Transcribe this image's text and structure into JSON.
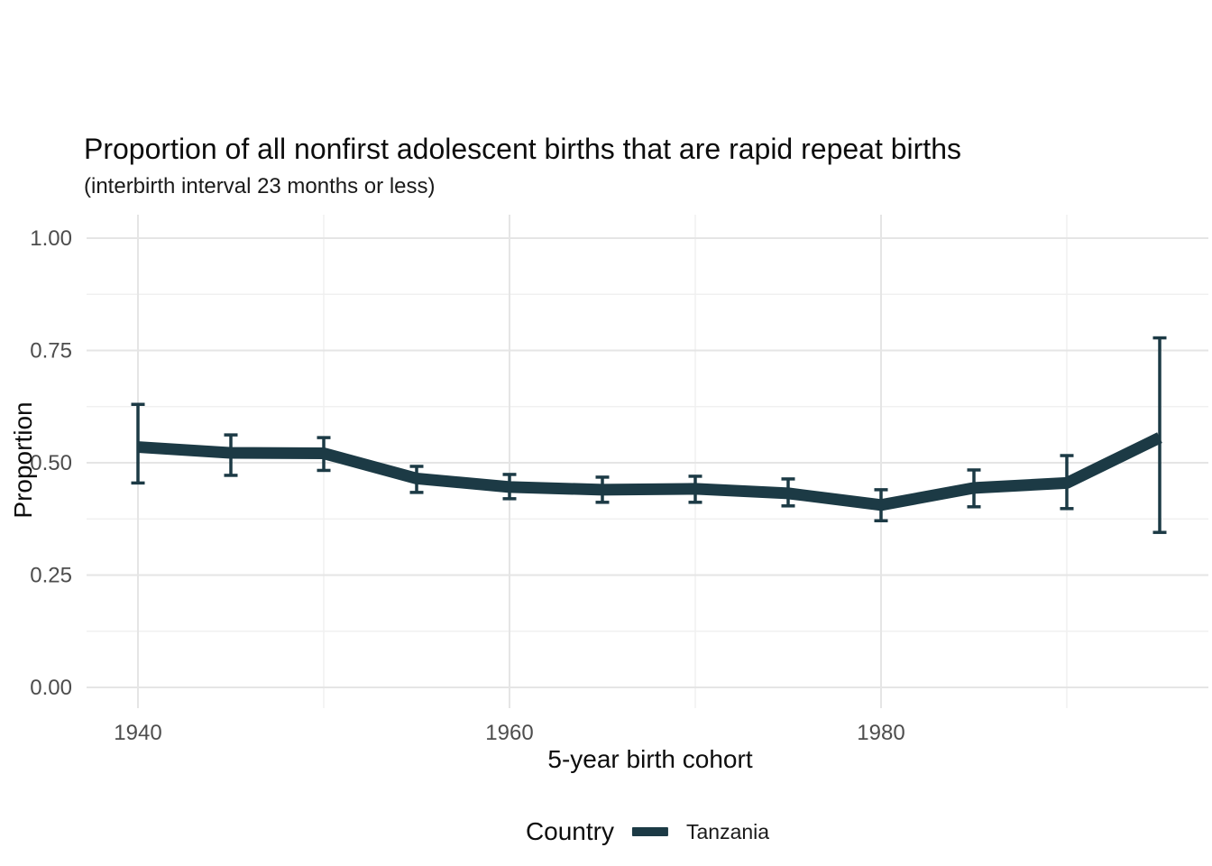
{
  "figure": {
    "title": "Proportion of all nonfirst adolescent births that are rapid repeat births",
    "subtitle": "(interbirth interval 23 months or less)"
  },
  "colors": {
    "series": "#1c3a45",
    "grid_major": "#e5e5e5",
    "grid_minor": "#f0f0f0",
    "tick_label": "#4d4d4d",
    "text": "#0d0d0d",
    "background": "#ffffff"
  },
  "chart_data": {
    "type": "line",
    "title": "Proportion of all nonfirst adolescent births that are rapid repeat births",
    "subtitle": "(interbirth interval 23 months or less)",
    "xlabel": "5-year birth cohort",
    "ylabel": "Proportion",
    "grid": "on",
    "x": [
      1940,
      1945,
      1950,
      1955,
      1960,
      1965,
      1970,
      1975,
      1980,
      1985,
      1990,
      1995
    ],
    "series": [
      {
        "name": "Tanzania",
        "color": "#1c3a45",
        "values": [
          0.535,
          0.522,
          0.521,
          0.465,
          0.446,
          0.44,
          0.442,
          0.432,
          0.406,
          0.444,
          0.455,
          0.556
        ],
        "ci_lower": [
          0.455,
          0.472,
          0.483,
          0.434,
          0.42,
          0.412,
          0.412,
          0.404,
          0.371,
          0.402,
          0.398,
          0.345
        ],
        "ci_upper": [
          0.63,
          0.562,
          0.556,
          0.492,
          0.474,
          0.468,
          0.47,
          0.464,
          0.44,
          0.484,
          0.516,
          0.778
        ]
      }
    ],
    "error_bars": true,
    "xlim": [
      1937.2,
      1997.6
    ],
    "ylim": [
      -0.05,
      1.05
    ],
    "x_ticks": {
      "major": [
        1940,
        1960,
        1980
      ],
      "minor": [
        1950,
        1970,
        1990
      ],
      "labels": [
        "1940",
        "1960",
        "1980"
      ]
    },
    "y_ticks": {
      "major": [
        0,
        0.25,
        0.5,
        0.75,
        1.0
      ],
      "minor": [
        0.125,
        0.375,
        0.625,
        0.875
      ],
      "labels": [
        "0.00",
        "0.25",
        "0.50",
        "0.75",
        "1.00"
      ]
    },
    "legend": {
      "title": "Country",
      "position": "bottom",
      "entries": [
        {
          "label": "Tanzania",
          "color": "#1c3a45"
        }
      ]
    }
  }
}
